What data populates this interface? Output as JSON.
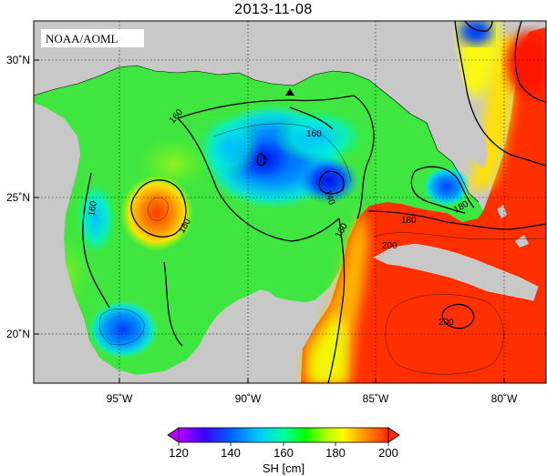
{
  "title": "2013-11-08",
  "credit": "NOAA/AOML",
  "axes": {
    "x_ticks": [
      "95˚W",
      "90˚W",
      "85˚W",
      "80˚W"
    ],
    "y_ticks": [
      "30˚N",
      "25˚N",
      "20˚N"
    ],
    "lon_range": [
      -98,
      -78
    ],
    "lat_range": [
      18,
      31
    ]
  },
  "contour_labels": [
    "160",
    "160",
    "160",
    "140",
    "160",
    "180",
    "180",
    "180",
    "200",
    "200"
  ],
  "colorbar": {
    "ticks": [
      "120",
      "140",
      "160",
      "180",
      "200"
    ],
    "label": "SH [cm]",
    "range": [
      120,
      200
    ],
    "colors": [
      "#b300ff",
      "#3b00ff",
      "#0060ff",
      "#00c8ff",
      "#00ffa0",
      "#00ff00",
      "#aaff00",
      "#ffff00",
      "#ff9900",
      "#ff2a00"
    ]
  },
  "marker": {
    "symbol": "triangle",
    "lon": -88.4,
    "lat": 28.8
  },
  "colors": {
    "land": "#c8c8c8",
    "contour": "#000000"
  }
}
